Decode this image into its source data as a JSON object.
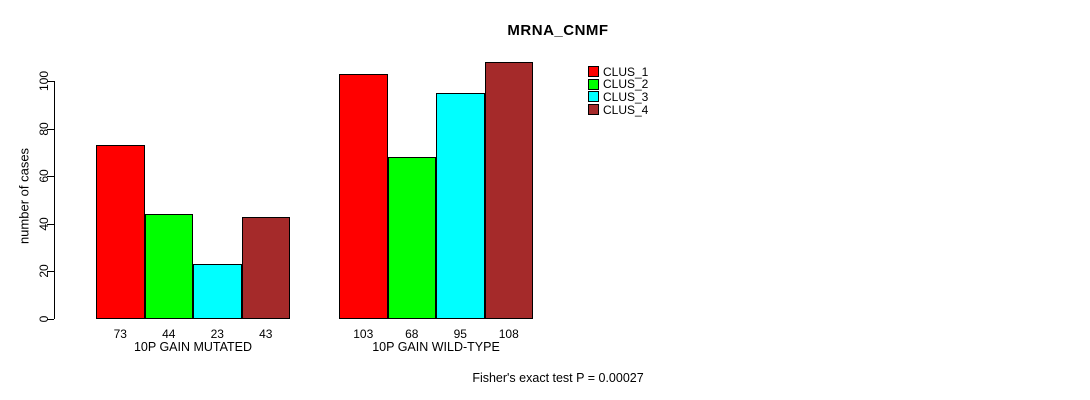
{
  "chart_data": {
    "type": "bar",
    "title": "MRNA_CNMF",
    "ylabel": "number of cases",
    "xlabel": "",
    "ylim": [
      0,
      100
    ],
    "yticks": [
      0,
      20,
      40,
      60,
      80,
      100
    ],
    "grid": false,
    "legend_position": "top-right",
    "categories": [
      "10P GAIN MUTATED",
      "10P GAIN WILD-TYPE"
    ],
    "series": [
      {
        "name": "CLUS_1",
        "color": "#FF0000",
        "values": [
          73,
          103
        ]
      },
      {
        "name": "CLUS_2",
        "color": "#00FF00",
        "values": [
          44,
          68
        ]
      },
      {
        "name": "CLUS_3",
        "color": "#00FFFF",
        "values": [
          23,
          95
        ]
      },
      {
        "name": "CLUS_4",
        "color": "#A52A2A",
        "values": [
          43,
          108
        ]
      }
    ],
    "bar_value_labels": [
      [
        73,
        44,
        23,
        43
      ],
      [
        103,
        68,
        95,
        108
      ]
    ],
    "annotation": "Fisher's exact test P = 0.00027",
    "axis_color": "#000000",
    "background_color": "#FFFFFF"
  }
}
